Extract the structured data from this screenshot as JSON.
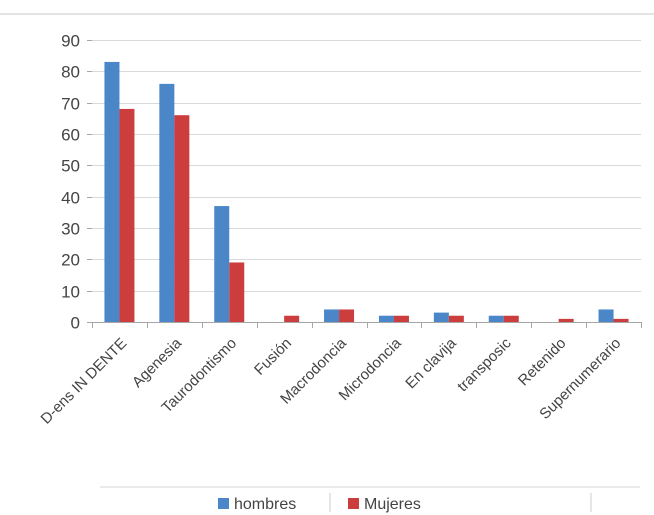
{
  "chart_data": {
    "type": "bar",
    "categories": [
      "D-ens IN DENTE",
      "Agenesia",
      "Taurodontismo",
      "Fusión",
      "Macrodoncia",
      "Microdoncia",
      "En clavija",
      "transposic",
      "Retenido",
      "Supernumerario"
    ],
    "series": [
      {
        "name": "hombres",
        "values": [
          83,
          76,
          37,
          0,
          4,
          2,
          3,
          2,
          0,
          4
        ],
        "color": "#4a86c8"
      },
      {
        "name": "Mujeres",
        "values": [
          68,
          66,
          19,
          2,
          4,
          2,
          2,
          2,
          1,
          1
        ],
        "color": "#cc3d3d"
      }
    ],
    "title": "",
    "xlabel": "",
    "ylabel": "",
    "ylim": [
      0,
      90
    ],
    "yticks": [
      0,
      10,
      20,
      30,
      40,
      50,
      60,
      70,
      80,
      90
    ],
    "grid": true,
    "legend_position": "bottom"
  }
}
